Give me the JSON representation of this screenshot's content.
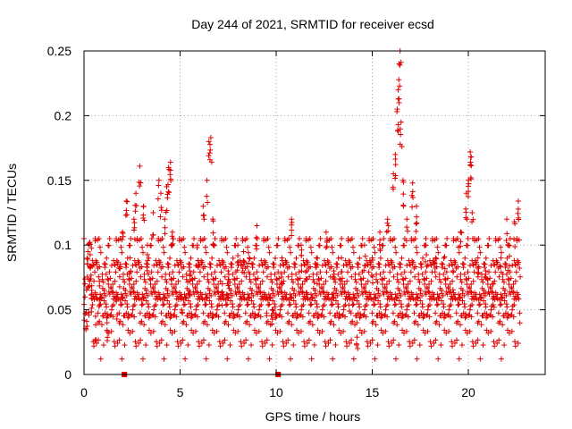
{
  "chart_data": {
    "type": "scatter",
    "title": "Day 244 of 2021, SRMTID for receiver ecsd",
    "xlabel": "GPS time / hours",
    "ylabel": "SRMTID / TECUs",
    "xlim": [
      0,
      24
    ],
    "ylim": [
      0,
      0.25
    ],
    "xticks": [
      0,
      5,
      10,
      15,
      20
    ],
    "yticks": [
      0,
      0.05,
      0.1,
      0.15,
      0.2,
      0.25
    ],
    "xtick_labels": [
      "0",
      "5",
      "10",
      "15",
      "20"
    ],
    "ytick_labels": [
      "0",
      "0.05",
      "0.1",
      "0.15",
      "0.2",
      "0.25"
    ],
    "grid": true,
    "marker": "+",
    "color": "#e00000",
    "series": [
      {
        "name": "SRMTID",
        "data_extent_hours": [
          0,
          22.7
        ],
        "baseline_mean": 0.058,
        "x": [
          0.2,
          0.3,
          0.4,
          0.6,
          0.8,
          1.2,
          1.7,
          1.9,
          2.0,
          2.2,
          2.4,
          2.6,
          2.7,
          2.9,
          3.1,
          3.3,
          3.6,
          3.9,
          4.0,
          4.2,
          4.3,
          4.4,
          4.5,
          4.6,
          5.1,
          5.5,
          5.9,
          6.2,
          6.4,
          6.5,
          6.6,
          6.7,
          7.2,
          7.5,
          8.0,
          8.3,
          8.6,
          9.0,
          9.5,
          9.8,
          10.3,
          10.8,
          11.3,
          11.6,
          12.1,
          12.6,
          13.0,
          13.4,
          13.8,
          14.2,
          14.6,
          15.0,
          15.4,
          15.8,
          16.1,
          16.2,
          16.3,
          16.35,
          16.4,
          16.45,
          16.5,
          16.6,
          16.8,
          17.1,
          17.3,
          17.8,
          18.3,
          18.8,
          19.2,
          19.6,
          19.9,
          20.0,
          20.1,
          20.15,
          20.2,
          20.5,
          20.9,
          21.3,
          21.7,
          22.0,
          22.1,
          22.4,
          22.6
        ],
        "y": [
          0.095,
          0.102,
          0.065,
          0.045,
          0.072,
          0.04,
          0.06,
          0.085,
          0.11,
          0.134,
          0.09,
          0.12,
          0.14,
          0.161,
          0.13,
          0.1,
          0.125,
          0.15,
          0.14,
          0.12,
          0.145,
          0.16,
          0.164,
          0.11,
          0.06,
          0.08,
          0.1,
          0.13,
          0.15,
          0.18,
          0.183,
          0.12,
          0.07,
          0.08,
          0.1,
          0.095,
          0.09,
          0.115,
          0.06,
          0.05,
          0.09,
          0.12,
          0.1,
          0.08,
          0.09,
          0.11,
          0.08,
          0.09,
          0.06,
          0.04,
          0.1,
          0.09,
          0.11,
          0.12,
          0.155,
          0.17,
          0.205,
          0.22,
          0.24,
          0.25,
          0.195,
          0.15,
          0.12,
          0.148,
          0.13,
          0.1,
          0.09,
          0.1,
          0.08,
          0.11,
          0.14,
          0.15,
          0.172,
          0.168,
          0.125,
          0.09,
          0.08,
          0.07,
          0.09,
          0.12,
          0.1,
          0.118,
          0.134
        ]
      }
    ],
    "zero_markers_x": [
      2.1,
      10.1
    ]
  }
}
